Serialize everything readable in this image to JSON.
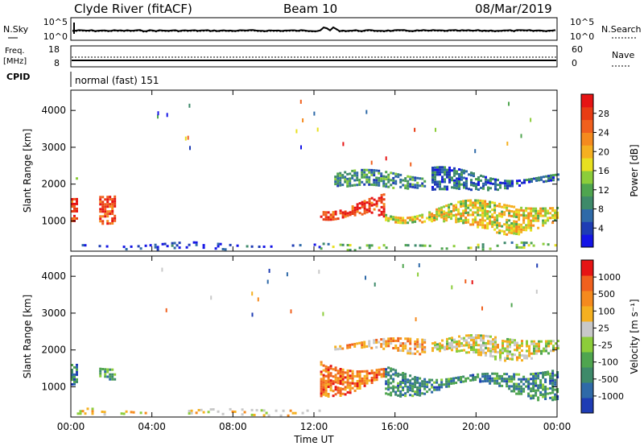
{
  "header": {
    "station": "Clyde River (fitACF)",
    "beam": "Beam 10",
    "date": "08/Mar/2019"
  },
  "strips": {
    "nsky_label": "N.Sky",
    "nsky_tick_top": "10^5",
    "nsky_tick_bottom": "10^0",
    "nsearch_label": "N.Search",
    "nsearch_tick_top": "10^5",
    "nsearch_tick_bottom": "10^0",
    "freq_label": "Freq.",
    "freq_unit": "[MHz]",
    "freq_tick_top": "18",
    "freq_tick_bottom": "8",
    "nave_label": "Nave",
    "nave_tick_top": "60",
    "nave_tick_bottom": "0",
    "cpid_label": "CPID",
    "cpid_value": "normal (fast) 151"
  },
  "chart_data": [
    {
      "type": "heatmap",
      "panel": "power",
      "ylabel": "Slant Range [km]",
      "xlabel": "",
      "x_ticks": [
        "00:00",
        "04:00",
        "08:00",
        "12:00",
        "16:00",
        "20:00",
        "00:00"
      ],
      "y_ticks": [
        1000,
        2000,
        3000,
        4000
      ],
      "ylim": [
        180,
        4550
      ],
      "xlim_hours": [
        0,
        24
      ],
      "colorbar_label": "Power [dB]",
      "colorbar_ticks": [
        "4",
        "8",
        "12",
        "16",
        "20",
        "24",
        "28"
      ],
      "colorbar_colors": [
        "#1414e6",
        "#1e3cb4",
        "#2f6aa8",
        "#3e8a6a",
        "#4fa54f",
        "#8ccd3a",
        "#e8e020",
        "#f5b020",
        "#f58a1e",
        "#f0601e",
        "#e83c14",
        "#e61414"
      ],
      "clusters": [
        {
          "t": [
            0.0,
            0.25
          ],
          "r": [
            900,
            1600
          ],
          "level": 0.85
        },
        {
          "t": [
            0.0,
            0.25
          ],
          "r": [
            2000,
            2250
          ],
          "level": 0.45
        },
        {
          "t": [
            1.4,
            2.2
          ],
          "r": [
            1050,
            1800
          ],
          "level": 0.85
        },
        {
          "t": [
            12.3,
            15.5
          ],
          "r": [
            800,
            1800
          ],
          "level": 0.9
        },
        {
          "t": [
            13.0,
            17.5
          ],
          "r": [
            1900,
            2350
          ],
          "level": 0.3
        },
        {
          "t": [
            15.5,
            24.0
          ],
          "r": [
            750,
            1550
          ],
          "level": 0.55
        },
        {
          "t": [
            17.8,
            24.0
          ],
          "r": [
            1800,
            2400
          ],
          "level": 0.2
        },
        {
          "t": [
            0.3,
            12.3
          ],
          "r": [
            230,
            420
          ],
          "level": 0.1
        },
        {
          "t": [
            12.3,
            24.0
          ],
          "r": [
            230,
            420
          ],
          "level": 0.4
        }
      ]
    },
    {
      "type": "heatmap",
      "panel": "velocity",
      "ylabel": "Slant Range [km]",
      "xlabel": "Time UT",
      "x_ticks": [
        "00:00",
        "04:00",
        "08:00",
        "12:00",
        "16:00",
        "20:00",
        "00:00"
      ],
      "y_ticks": [
        1000,
        2000,
        3000,
        4000
      ],
      "ylim": [
        180,
        4550
      ],
      "xlim_hours": [
        0,
        24
      ],
      "colorbar_label": "Velocity [m s⁻¹]",
      "colorbar_ticks": [
        "1000",
        "500",
        "100",
        "25",
        "-25",
        "-100",
        "-500",
        "-1000"
      ],
      "colorbar_colors": [
        "#1e3cb4",
        "#2f6aa8",
        "#3e8a6a",
        "#4fa54f",
        "#8ccd3a",
        "#c8c8c8",
        "#f5b020",
        "#f58a1e",
        "#f0601e",
        "#e61414"
      ],
      "clusters": [
        {
          "t": [
            0.0,
            0.25
          ],
          "r": [
            900,
            1600
          ],
          "level": 0.2
        },
        {
          "t": [
            1.4,
            2.2
          ],
          "r": [
            1050,
            1800
          ],
          "level": 0.3
        },
        {
          "t": [
            12.3,
            15.5
          ],
          "r": [
            800,
            1800
          ],
          "level": 0.8
        },
        {
          "t": [
            13.0,
            17.5
          ],
          "r": [
            1900,
            2350
          ],
          "level": 0.7
        },
        {
          "t": [
            15.5,
            24.0
          ],
          "r": [
            750,
            1550
          ],
          "level": 0.25
        },
        {
          "t": [
            17.8,
            24.0
          ],
          "r": [
            1800,
            2400
          ],
          "level": 0.55
        },
        {
          "t": [
            0.3,
            12.3
          ],
          "r": [
            230,
            420
          ],
          "level": 0.6
        }
      ]
    }
  ]
}
